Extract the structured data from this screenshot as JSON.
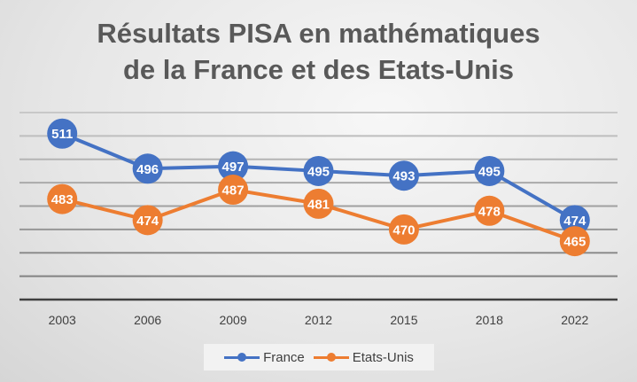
{
  "chart_data": {
    "type": "line",
    "title_line1": "Résultats PISA en mathématiques",
    "title_line2": "de la France et des Etats-Unis",
    "categories": [
      "2003",
      "2006",
      "2009",
      "2012",
      "2015",
      "2018",
      "2022"
    ],
    "series": [
      {
        "name": "France",
        "values": [
          511,
          496,
          497,
          495,
          493,
          495,
          474
        ],
        "color": "#4472c4"
      },
      {
        "name": "Etats-Unis",
        "values": [
          483,
          474,
          487,
          481,
          470,
          478,
          465
        ],
        "color": "#ed7d31"
      }
    ],
    "ylim": [
      440,
      520
    ],
    "y_grid_step": 10,
    "y_tick_labels_shown": false,
    "grid": true,
    "data_labels": true,
    "legend": "bottom"
  }
}
